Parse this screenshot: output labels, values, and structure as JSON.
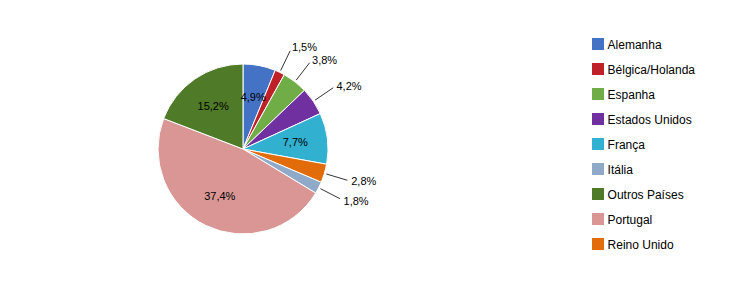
{
  "chart_data": {
    "type": "pie",
    "categories": [
      "Alemanha",
      "Bélgica/Holanda",
      "Espanha",
      "Estados Unidos",
      "França",
      "Reino Unido",
      "Itália",
      "Portugal",
      "Outros Países"
    ],
    "values": [
      4.9,
      1.5,
      3.8,
      4.2,
      7.7,
      2.8,
      1.8,
      37.4,
      15.2
    ],
    "value_labels": [
      "4,9%",
      "1,5%",
      "3,8%",
      "4,2%",
      "7,7%",
      "2,8%",
      "1,8%",
      "37,4%",
      "15,2%"
    ],
    "colors": [
      "#4472C4",
      "#BE2127",
      "#70AD47",
      "#7030A0",
      "#31B0CF",
      "#E36C0A",
      "#8FA9C8",
      "#D99694",
      "#4F7A28"
    ],
    "data_labels": true,
    "legend": "right"
  }
}
